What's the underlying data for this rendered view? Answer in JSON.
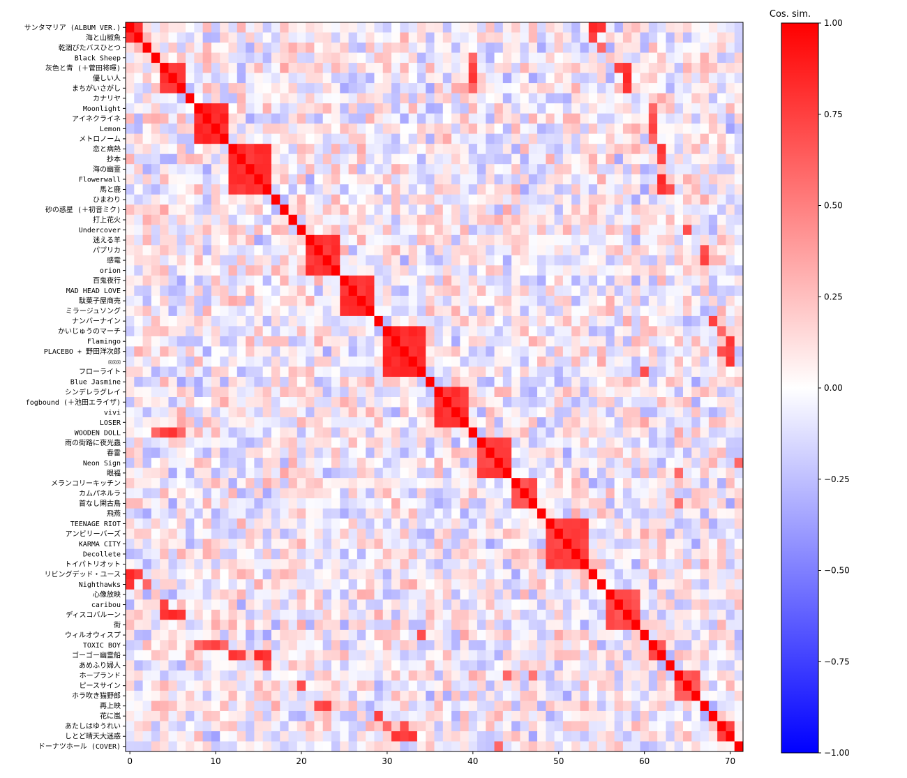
{
  "chart_data": {
    "type": "heatmap",
    "title": "",
    "xlabel": "",
    "ylabel": "",
    "colorbar": {
      "title": "Cos. sim.",
      "range": [
        -1.0,
        1.0
      ],
      "ticks": [
        "1.00",
        "0.75",
        "0.50",
        "0.25",
        "0.00",
        "−0.25",
        "−0.50",
        "−0.75",
        "−1.00"
      ],
      "tick_values": [
        1.0,
        0.75,
        0.5,
        0.25,
        0.0,
        -0.25,
        -0.5,
        -0.75,
        -1.0
      ],
      "colormap": "bwr",
      "colors": {
        "low": "#0000ff",
        "mid": "#ffffff",
        "high": "#ff0000"
      }
    },
    "n": 72,
    "x_ticks": [
      0,
      10,
      20,
      30,
      40,
      50,
      60,
      70
    ],
    "labels": [
      "サンタマリア (ALBUM VER.)",
      "海と山椒魚",
      "乾涸びたバスひとつ",
      "Black Sheep",
      "灰色と青 (＋菅田将暉)",
      "優しい人",
      "まちがいさがし",
      "カナリヤ",
      "Moonlight",
      "アイネクライネ",
      "Lemon",
      "メトロノーム",
      "恋と病熱",
      "抄本",
      "海の幽霊",
      "Flowerwall",
      "馬と鹿",
      "ひまわり",
      "砂の惑星 (＋初音ミク)",
      "打上花火",
      "Undercover",
      "迷える羊",
      "パプリカ",
      "感電",
      "orion",
      "百鬼夜行",
      "MAD HEAD LOVE",
      "駄菓子屋商売",
      "ミラージュソング",
      "ナンバーナイン",
      "かいじゅうのマーチ",
      "Flamingo",
      "PLACEBO + 野田洋次郎",
      "☒☒☒",
      "フローライト",
      "Blue Jasmine",
      "シンデレラグレイ",
      "fogbound (＋池田エライザ)",
      "vivi",
      "LOSER",
      "WOODEN DOLL",
      "雨の街路に夜光蟲",
      "春雷",
      "Neon Sign",
      "眼福",
      "メランコリーキッチン",
      "カムパネルラ",
      "首なし閑古鳥",
      "飛燕",
      "TEENAGE RIOT",
      "アンビリーバーズ",
      "KARMA CITY",
      "Decollete",
      "トイパトリオット",
      "リビングデッド・ユース",
      "Nighthawks",
      "心像放映",
      "caribou",
      "ディスコバルーン",
      "街",
      "ウィルオウィスプ",
      "TOXIC BOY",
      "ゴーゴー幽霊船",
      "あめふり婦人",
      "ホープランド",
      "ピースサイン",
      "ホラ吹き猫野郎",
      "再上映",
      "花に嵐",
      "あたしはゆうれい",
      "しとど晴天大迷惑",
      "ドーナツホール (COVER)"
    ],
    "blocks": [
      {
        "rows": [
          0,
          1
        ],
        "value": 0.85
      },
      {
        "rows": [
          4,
          6
        ],
        "value": 0.85
      },
      {
        "rows": [
          8,
          11
        ],
        "value": 0.9
      },
      {
        "rows": [
          12,
          16
        ],
        "value": 0.85
      },
      {
        "rows": [
          21,
          24
        ],
        "value": 0.85
      },
      {
        "rows": [
          25,
          28
        ],
        "value": 0.85
      },
      {
        "rows": [
          30,
          34
        ],
        "value": 0.9
      },
      {
        "rows": [
          36,
          39
        ],
        "value": 0.85
      },
      {
        "rows": [
          41,
          44
        ],
        "value": 0.8
      },
      {
        "rows": [
          45,
          47
        ],
        "value": 0.75
      },
      {
        "rows": [
          49,
          53
        ],
        "value": 0.8
      },
      {
        "rows": [
          56,
          59
        ],
        "value": 0.75
      },
      {
        "rows": [
          61,
          62
        ],
        "value": 0.75
      },
      {
        "rows": [
          64,
          66
        ],
        "value": 0.7
      },
      {
        "rows": [
          69,
          70
        ],
        "value": 0.8
      }
    ],
    "offdiag_pairs": [
      [
        0,
        54,
        0.85
      ],
      [
        0,
        55,
        0.8
      ],
      [
        1,
        54,
        0.75
      ],
      [
        2,
        55,
        0.6
      ],
      [
        4,
        57,
        0.75
      ],
      [
        4,
        58,
        0.8
      ],
      [
        5,
        58,
        0.85
      ],
      [
        6,
        58,
        0.8
      ],
      [
        5,
        40,
        0.8
      ],
      [
        6,
        40,
        0.6
      ],
      [
        8,
        61,
        0.6
      ],
      [
        9,
        61,
        0.7
      ],
      [
        10,
        61,
        0.75
      ],
      [
        11,
        61,
        0.6
      ],
      [
        12,
        62,
        0.8
      ],
      [
        13,
        62,
        0.75
      ],
      [
        15,
        62,
        0.85
      ],
      [
        16,
        62,
        0.8
      ],
      [
        16,
        63,
        0.7
      ],
      [
        22,
        67,
        0.7
      ],
      [
        23,
        67,
        0.75
      ],
      [
        20,
        65,
        0.7
      ],
      [
        31,
        70,
        0.8
      ],
      [
        32,
        70,
        0.75
      ],
      [
        33,
        70,
        0.8
      ],
      [
        32,
        69,
        0.7
      ],
      [
        30,
        69,
        0.6
      ],
      [
        34,
        60,
        0.7
      ],
      [
        29,
        68,
        0.75
      ],
      [
        44,
        64,
        0.6
      ],
      [
        43,
        71,
        0.6
      ],
      [
        47,
        64,
        0.55
      ],
      [
        40,
        3,
        0.6
      ],
      [
        40,
        4,
        0.75
      ]
    ]
  }
}
